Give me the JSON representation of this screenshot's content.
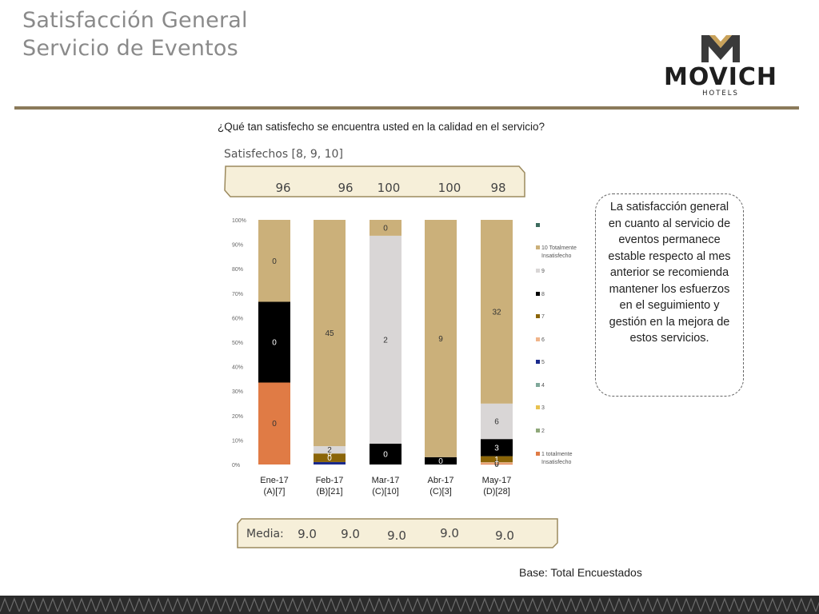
{
  "header": {
    "title_line1": "Satisfacción General",
    "title_line2": "Servicio de Eventos"
  },
  "logo": {
    "brand": "MOVICH",
    "sub": "HOTELS"
  },
  "colors": {
    "gold": "#cbb07a",
    "rule": "#8b7a5a",
    "footer_dark": "#2b2b2b"
  },
  "question": "¿Qué tan satisfecho se encuentra usted en la calidad en el servicio?",
  "satisfied": {
    "label": "Satisfechos [8, 9, 10]",
    "values": [
      "96",
      "96",
      "100",
      "100",
      "98"
    ]
  },
  "media": {
    "label": "Media:",
    "values": [
      "9.0",
      "9.0",
      "9.0",
      "9.0",
      "9.0"
    ]
  },
  "callout": "La satisfacción general en cuanto al servicio de eventos permanece estable respecto al mes anterior  se recomienda mantener los esfuerzos en el seguimiento y gestión en la mejora de estos servicios.",
  "base": "Base: Total Encuestados",
  "chart_data": {
    "type": "bar",
    "stacked": true,
    "percent": true,
    "ylim": [
      0,
      100
    ],
    "yticks": [
      "0%",
      "10%",
      "20%",
      "30%",
      "40%",
      "50%",
      "60%",
      "70%",
      "80%",
      "90%",
      "100%"
    ],
    "categories": [
      {
        "name": "Ene-17",
        "sub": "(A)[7]"
      },
      {
        "name": "Feb-17",
        "sub": "(B)[21]"
      },
      {
        "name": "Mar-17",
        "sub": "(C)[10]"
      },
      {
        "name": "Abr-17",
        "sub": "(C)[3]"
      },
      {
        "name": "May-17",
        "sub": "(D)[28]"
      }
    ],
    "legend": [
      {
        "name": "",
        "color": "#3d6b5e"
      },
      {
        "name": "10 Totalmente Insatisfecho",
        "color": "#cbb07a"
      },
      {
        "name": "9",
        "color": "#d9d6d6"
      },
      {
        "name": "8",
        "color": "#000000"
      },
      {
        "name": "7",
        "color": "#8b6508"
      },
      {
        "name": "6",
        "color": "#f0b48a"
      },
      {
        "name": "5",
        "color": "#1a2a8c"
      },
      {
        "name": "4",
        "color": "#7fa89a"
      },
      {
        "name": "3",
        "color": "#e8c250"
      },
      {
        "name": "2",
        "color": "#8fa87a"
      },
      {
        "name": "1 totalmente Insatisfecho",
        "color": "#e07b45"
      }
    ],
    "series": [
      {
        "name": "1 totalmente Insatisfecho",
        "color": "#e07b45",
        "values": [
          33.5,
          0,
          0,
          0,
          0.4
        ],
        "labels": [
          "0",
          "",
          "",
          "",
          "0"
        ]
      },
      {
        "name": "5",
        "color": "#1a2a8c",
        "values": [
          0,
          1.0,
          0,
          0,
          0
        ],
        "labels": [
          "",
          "",
          "",
          "",
          ""
        ]
      },
      {
        "name": "6",
        "color": "#f0b48a",
        "values": [
          0,
          0,
          0,
          0,
          0.5
        ],
        "labels": [
          "",
          "",
          "",
          "",
          "0"
        ]
      },
      {
        "name": "7",
        "color": "#8b6508",
        "values": [
          0,
          3.5,
          0,
          0,
          2.5
        ],
        "labels": [
          "",
          "0",
          "",
          "",
          "1"
        ]
      },
      {
        "name": "8",
        "color": "#000000",
        "values": [
          33.0,
          0,
          8.5,
          3.0,
          7.0
        ],
        "labels": [
          "0",
          "0",
          "0",
          "0",
          "3"
        ]
      },
      {
        "name": "9",
        "color": "#d9d6d6",
        "values": [
          0,
          3.0,
          85.0,
          0,
          14.5
        ],
        "labels": [
          "",
          "2",
          "2",
          "",
          "6"
        ]
      },
      {
        "name": "10 Totalmente Insatisfecho",
        "color": "#cbb07a",
        "values": [
          33.5,
          92.5,
          6.5,
          97.0,
          75.1
        ],
        "labels": [
          "0",
          "45",
          "0",
          "9",
          "32"
        ]
      }
    ]
  }
}
